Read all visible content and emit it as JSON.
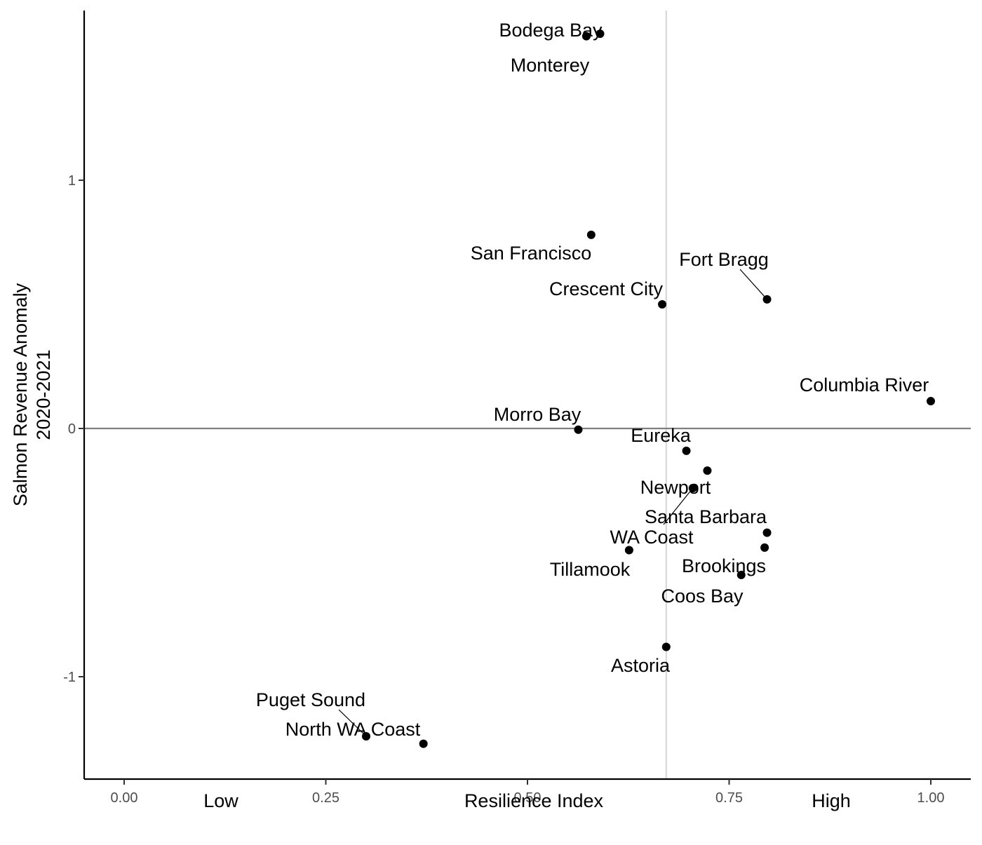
{
  "chart_data": {
    "type": "scatter",
    "xlabel": "Resilience Index",
    "ylabel": [
      "Salmon Revenue Anomaly",
      "2020-2021"
    ],
    "x_axis_side_labels": {
      "low": "Low",
      "high": "High"
    },
    "xlim": [
      -0.05,
      1.05
    ],
    "ylim": [
      -1.41,
      1.68
    ],
    "x_ticks": [
      {
        "value": 0.0,
        "label": "0.00"
      },
      {
        "value": 0.25,
        "label": "0.25"
      },
      {
        "value": 0.5,
        "label": "0.50"
      },
      {
        "value": 0.75,
        "label": "0.75"
      },
      {
        "value": 1.0,
        "label": "1.00"
      }
    ],
    "y_ticks": [
      {
        "value": 1,
        "label": "1"
      },
      {
        "value": 0,
        "label": "0"
      },
      {
        "value": -1,
        "label": "-1"
      }
    ],
    "reference_lines": {
      "horizontal_y": 0,
      "vertical_x": 0.672
    },
    "grid": false,
    "points": [
      {
        "label": "Bodega Bay",
        "x": 0.59,
        "y": 1.59
      },
      {
        "label": "Monterey",
        "x": 0.573,
        "y": 1.58
      },
      {
        "label": "San Francisco",
        "x": 0.579,
        "y": 0.78
      },
      {
        "label": "Crescent City",
        "x": 0.667,
        "y": 0.5
      },
      {
        "label": "Fort Bragg",
        "x": 0.797,
        "y": 0.52
      },
      {
        "label": "Columbia River",
        "x": 1.0,
        "y": 0.11
      },
      {
        "label": "Morro Bay",
        "x": 0.563,
        "y": -0.005
      },
      {
        "label": "Eureka",
        "x": 0.697,
        "y": -0.09
      },
      {
        "label": "Newport",
        "x": 0.723,
        "y": -0.17
      },
      {
        "label": "Santa Barbara",
        "x": 0.705,
        "y": -0.24
      },
      {
        "label": "WA Coast",
        "x": 0.797,
        "y": -0.42
      },
      {
        "label": "Tillamook",
        "x": 0.626,
        "y": -0.49
      },
      {
        "label": "Brookings",
        "x": 0.794,
        "y": -0.48
      },
      {
        "label": "Coos Bay",
        "x": 0.765,
        "y": -0.59
      },
      {
        "label": "Astoria",
        "x": 0.672,
        "y": -0.88
      },
      {
        "label": "Puget Sound",
        "x": 0.3,
        "y": -1.24
      },
      {
        "label": "North WA Coast",
        "x": 0.371,
        "y": -1.27
      }
    ]
  }
}
